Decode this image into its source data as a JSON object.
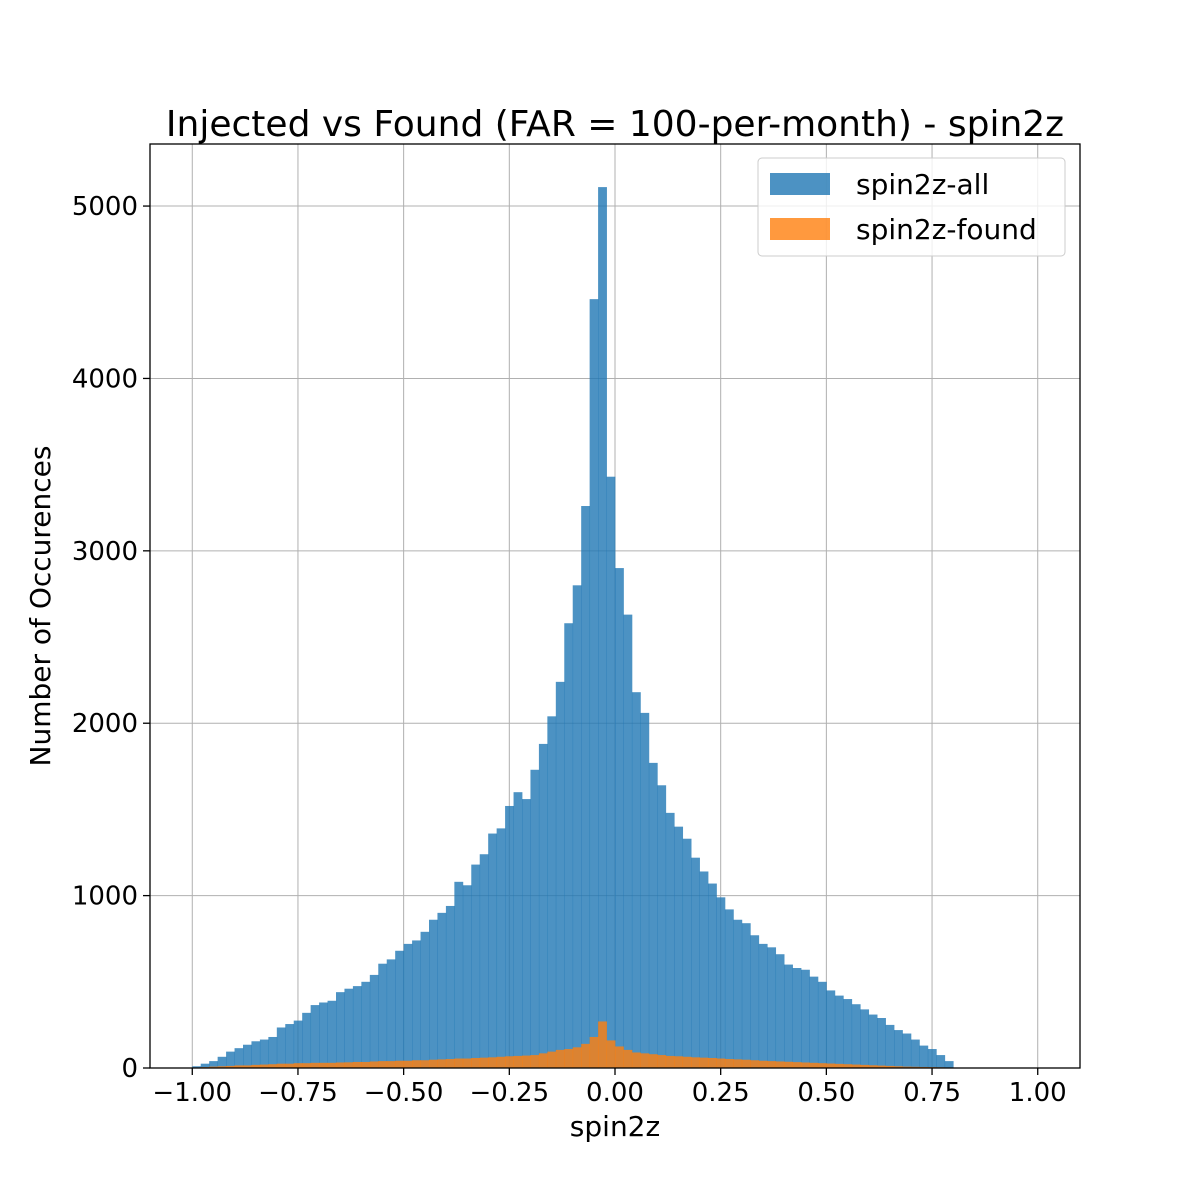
{
  "chart_data": {
    "type": "bar",
    "title": "Injected vs Found (FAR = 100-per-month) - spin2z",
    "xlabel": "spin2z",
    "ylabel": "Number of Occurences",
    "xlim": [
      -1.1,
      1.1
    ],
    "ylim": [
      0,
      5360
    ],
    "grid": true,
    "legend_position": "top-right",
    "xticks": [
      -1.0,
      -0.75,
      -0.5,
      -0.25,
      0.0,
      0.25,
      0.5,
      0.75,
      1.0
    ],
    "xtick_labels": [
      "−1.00",
      "−0.75",
      "−0.50",
      "−0.25",
      "0.00",
      "0.25",
      "0.50",
      "0.75",
      "1.00"
    ],
    "yticks": [
      0,
      1000,
      2000,
      3000,
      4000,
      5000
    ],
    "ytick_labels": [
      "0",
      "1000",
      "2000",
      "3000",
      "4000",
      "5000"
    ],
    "bin_start": -1.0,
    "bin_width": 0.02,
    "series": [
      {
        "name": "spin2z-all",
        "color": "#1f77b4",
        "values": [
          10,
          25,
          40,
          65,
          95,
          115,
          135,
          155,
          165,
          180,
          235,
          255,
          275,
          320,
          365,
          380,
          390,
          440,
          460,
          475,
          500,
          540,
          605,
          630,
          680,
          720,
          740,
          790,
          860,
          900,
          940,
          1080,
          1060,
          1180,
          1240,
          1360,
          1390,
          1520,
          1600,
          1560,
          1730,
          1880,
          2040,
          2240,
          2580,
          2800,
          3260,
          4460,
          5110,
          3430,
          2900,
          2630,
          2180,
          2060,
          1770,
          1640,
          1480,
          1400,
          1330,
          1220,
          1140,
          1070,
          990,
          920,
          860,
          840,
          770,
          720,
          700,
          660,
          600,
          580,
          570,
          530,
          500,
          450,
          420,
          400,
          370,
          340,
          310,
          290,
          250,
          220,
          200,
          165,
          130,
          110,
          75,
          40
        ]
      },
      {
        "name": "spin2z-found",
        "color": "#ff7f0e",
        "values": [
          3,
          5,
          8,
          10,
          12,
          15,
          15,
          18,
          20,
          22,
          25,
          25,
          28,
          28,
          30,
          30,
          30,
          32,
          33,
          35,
          35,
          38,
          40,
          40,
          42,
          42,
          45,
          45,
          48,
          50,
          52,
          55,
          55,
          58,
          60,
          62,
          65,
          68,
          70,
          72,
          75,
          85,
          95,
          105,
          110,
          120,
          140,
          180,
          270,
          160,
          125,
          105,
          90,
          85,
          80,
          75,
          70,
          68,
          65,
          62,
          60,
          58,
          55,
          52,
          50,
          48,
          45,
          42,
          40,
          38,
          36,
          34,
          32,
          30,
          28,
          26,
          24,
          22,
          20,
          18,
          16,
          14,
          12,
          10,
          8,
          7,
          6,
          5,
          4,
          3
        ]
      }
    ]
  }
}
